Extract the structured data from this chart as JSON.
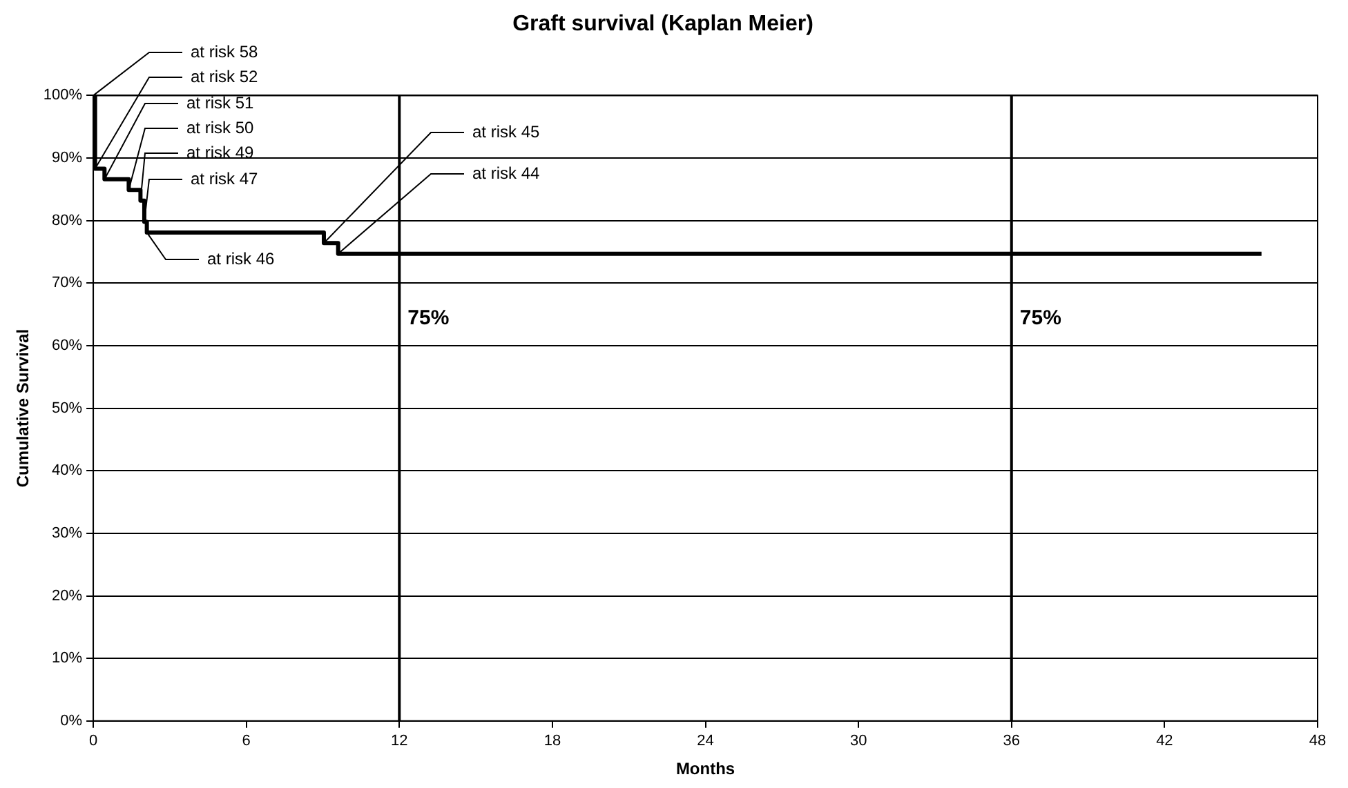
{
  "chart_data": {
    "type": "step",
    "title": "Graft survival (Kaplan Meier)",
    "xlabel": "Months",
    "ylabel": "Cumulative Survival",
    "x": [
      0,
      0.07,
      0.44,
      1.39,
      1.85,
      2.0,
      2.1,
      9.04,
      9.6,
      45.8
    ],
    "series": [
      {
        "color": "#000000",
        "values": [
          100,
          88.3,
          86.6,
          84.9,
          83.2,
          79.8,
          78.1,
          76.4,
          74.7,
          74.7
        ]
      }
    ],
    "xlim": [
      0,
      48
    ],
    "xticks": [
      0,
      6,
      12,
      18,
      24,
      30,
      36,
      42,
      48
    ],
    "ylim": [
      0,
      100
    ],
    "yticks": [
      {
        "value": 0,
        "label": "0%"
      },
      {
        "value": 10,
        "label": "10%"
      },
      {
        "value": 20,
        "label": "20%"
      },
      {
        "value": 30,
        "label": "30%"
      },
      {
        "value": 40,
        "label": "40%"
      },
      {
        "value": 50,
        "label": "50%"
      },
      {
        "value": 60,
        "label": "60%"
      },
      {
        "value": 70,
        "label": "70%"
      },
      {
        "value": 80,
        "label": "80%"
      },
      {
        "value": 90,
        "label": "90%"
      },
      {
        "value": 100,
        "label": "100%"
      }
    ],
    "grid": "y",
    "legend": false,
    "marker": "none",
    "line_style": "solid",
    "ref_lines": [
      {
        "axis": "x",
        "value": 12
      },
      {
        "axis": "x",
        "value": 36
      }
    ],
    "annotations": [
      {
        "text": "75%",
        "x": 12,
        "y": 74.7
      },
      {
        "text": "75%",
        "x": 36,
        "y": 74.7
      },
      {
        "text": "at risk 58",
        "x": 0,
        "y": 100
      },
      {
        "text": "at risk 52",
        "x": 0.07,
        "y": 88.3
      },
      {
        "text": "at risk 51",
        "x": 0.44,
        "y": 86.6
      },
      {
        "text": "at risk 50",
        "x": 1.39,
        "y": 84.9
      },
      {
        "text": "at risk 49",
        "x": 1.85,
        "y": 83.2
      },
      {
        "text": "at risk 47",
        "x": 2.0,
        "y": 79.8
      },
      {
        "text": "at risk 46",
        "x": 2.1,
        "y": 78.1
      },
      {
        "text": "at risk 45",
        "x": 9.04,
        "y": 76.4
      },
      {
        "text": "at risk 44",
        "x": 9.6,
        "y": 74.7
      }
    ]
  }
}
